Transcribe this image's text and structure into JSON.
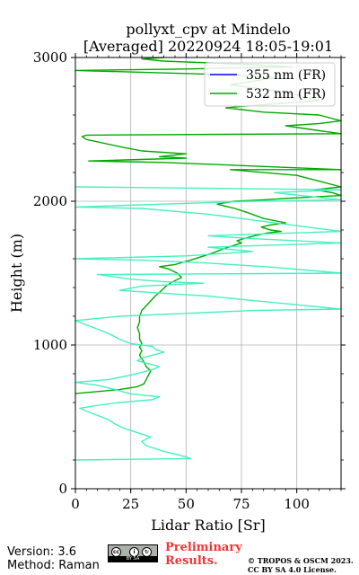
{
  "chart_data": {
    "type": "line",
    "title_line1": "pollyxt_cpv at Mindelo",
    "title_line2": "[Averaged] 20220924 18:05-19:01",
    "xlabel": "Lidar Ratio [Sr]",
    "ylabel": "Height (m)",
    "xlim": [
      0,
      120
    ],
    "ylim": [
      0,
      3000
    ],
    "xticks": [
      0,
      25,
      50,
      75,
      100
    ],
    "yticks": [
      0,
      1000,
      2000,
      3000
    ],
    "grid": true,
    "legend_position": "top-right",
    "legend": [
      {
        "label": "355 nm (FR)",
        "color": "#0000ff"
      },
      {
        "label": "532 nm (FR)",
        "color": "#00aa00"
      }
    ],
    "series": [
      {
        "name": "355 nm (FR)",
        "color": "#0000ff",
        "points": []
      },
      {
        "name": "532 nm (FR)",
        "color": "#00aa00",
        "points": [
          [
            0,
            662
          ],
          [
            20,
            690
          ],
          [
            28,
            710
          ],
          [
            31,
            730
          ],
          [
            32,
            760
          ],
          [
            33,
            790
          ],
          [
            34,
            820
          ],
          [
            32,
            850
          ],
          [
            31,
            880
          ],
          [
            30,
            905
          ],
          [
            29,
            930
          ],
          [
            30,
            960
          ],
          [
            29,
            985
          ],
          [
            30,
            1010
          ],
          [
            29,
            1040
          ],
          [
            29,
            1080
          ],
          [
            28,
            1120
          ],
          [
            29,
            1160
          ],
          [
            29,
            1200
          ],
          [
            30,
            1240
          ],
          [
            33,
            1290
          ],
          [
            36,
            1340
          ],
          [
            39,
            1380
          ],
          [
            41,
            1410
          ],
          [
            44,
            1440
          ],
          [
            48,
            1470
          ],
          [
            46,
            1500
          ],
          [
            42,
            1530
          ],
          [
            38,
            1545
          ],
          [
            45,
            1560
          ],
          [
            52,
            1590
          ],
          [
            58,
            1620
          ],
          [
            63,
            1645
          ],
          [
            67,
            1670
          ],
          [
            72,
            1695
          ],
          [
            75,
            1710
          ],
          [
            73,
            1725
          ],
          [
            76,
            1740
          ],
          [
            81,
            1760
          ],
          [
            87,
            1780
          ],
          [
            93,
            1790
          ],
          [
            88,
            1800
          ],
          [
            84,
            1820
          ],
          [
            88,
            1835
          ],
          [
            95,
            1850
          ],
          [
            85,
            1880
          ],
          [
            78,
            1920
          ],
          [
            72,
            1950
          ],
          [
            64,
            1980
          ],
          [
            72,
            2000
          ],
          [
            85,
            2010
          ],
          [
            95,
            2020
          ],
          [
            108,
            2030
          ],
          [
            120,
            2040
          ],
          [
            116,
            2060
          ],
          [
            108,
            2080
          ],
          [
            120,
            2100
          ],
          [
            110,
            2140
          ],
          [
            100,
            2180
          ],
          [
            70,
            2220
          ],
          [
            120,
            2220
          ],
          [
            40,
            2270
          ],
          [
            6,
            2280
          ],
          [
            50,
            2300
          ],
          [
            38,
            2310
          ],
          [
            50,
            2330
          ],
          [
            30,
            2350
          ],
          [
            20,
            2380
          ],
          [
            5,
            2430
          ],
          [
            3,
            2450
          ],
          [
            5,
            2460
          ],
          [
            120,
            2470
          ],
          [
            106,
            2500
          ],
          [
            95,
            2525
          ],
          [
            110,
            2540
          ],
          [
            120,
            2560
          ],
          [
            110,
            2600
          ],
          [
            85,
            2620
          ],
          [
            68,
            2650
          ],
          [
            75,
            2660
          ],
          [
            110,
            2700
          ],
          [
            95,
            2760
          ],
          [
            70,
            2810
          ],
          [
            90,
            2860
          ],
          [
            70,
            2880
          ],
          [
            0,
            2910
          ],
          [
            50,
            2920
          ],
          [
            98,
            2935
          ],
          [
            80,
            2950
          ],
          [
            65,
            2960
          ],
          [
            40,
            2975
          ],
          [
            30,
            2990
          ],
          [
            40,
            3000
          ]
        ]
      },
      {
        "name": "",
        "color": "#44f0c0",
        "points": [
          [
            0,
            200
          ],
          [
            52,
            210
          ],
          [
            48,
            230
          ],
          [
            40,
            260
          ],
          [
            32,
            300
          ],
          [
            30,
            330
          ],
          [
            34,
            360
          ],
          [
            28,
            390
          ],
          [
            22,
            420
          ],
          [
            18,
            450
          ],
          [
            15,
            480
          ],
          [
            10,
            510
          ],
          [
            5,
            540
          ],
          [
            2,
            560
          ],
          [
            10,
            580
          ],
          [
            20,
            600
          ],
          [
            35,
            620
          ],
          [
            38,
            640
          ],
          [
            25,
            660
          ],
          [
            18,
            690
          ],
          [
            10,
            720
          ],
          [
            0,
            740
          ],
          [
            15,
            760
          ],
          [
            25,
            790
          ],
          [
            30,
            810
          ],
          [
            35,
            830
          ],
          [
            38,
            850
          ],
          [
            33,
            870
          ],
          [
            28,
            890
          ],
          [
            30,
            910
          ],
          [
            35,
            930
          ],
          [
            40,
            950
          ],
          [
            36,
            970
          ],
          [
            35,
            990
          ],
          [
            30,
            1000
          ],
          [
            25,
            1010
          ],
          [
            20,
            1040
          ],
          [
            15,
            1080
          ],
          [
            10,
            1110
          ],
          [
            5,
            1140
          ],
          [
            0,
            1170
          ],
          [
            20,
            1200
          ],
          [
            50,
            1220
          ],
          [
            80,
            1240
          ],
          [
            120,
            1250
          ],
          [
            100,
            1280
          ],
          [
            80,
            1310
          ],
          [
            60,
            1340
          ],
          [
            40,
            1360
          ],
          [
            20,
            1380
          ],
          [
            30,
            1410
          ],
          [
            58,
            1430
          ],
          [
            40,
            1440
          ],
          [
            24,
            1460
          ],
          [
            15,
            1480
          ],
          [
            10,
            1490
          ],
          [
            120,
            1500
          ],
          [
            90,
            1540
          ],
          [
            60,
            1570
          ],
          [
            30,
            1590
          ],
          [
            0,
            1600
          ],
          [
            50,
            1620
          ],
          [
            80,
            1650
          ],
          [
            60,
            1680
          ],
          [
            120,
            1710
          ],
          [
            80,
            1740
          ],
          [
            60,
            1760
          ],
          [
            120,
            1790
          ],
          [
            100,
            1830
          ],
          [
            80,
            1870
          ],
          [
            60,
            1910
          ],
          [
            30,
            1950
          ],
          [
            0,
            1960
          ],
          [
            40,
            1980
          ],
          [
            80,
            2000
          ],
          [
            120,
            2010
          ],
          [
            90,
            2060
          ],
          [
            120,
            2080
          ],
          [
            0,
            2100
          ]
        ]
      }
    ]
  },
  "footer": {
    "version": "Version: 3.6",
    "method": "Method: Raman",
    "preliminary_line1": "Preliminary",
    "preliminary_line2": "Results.",
    "copyright_line1": "© TROPOS & OSCM 2023.",
    "copyright_line2": "CC BY SA 4.0 License.",
    "cc_logo_text": "BY  SA"
  }
}
